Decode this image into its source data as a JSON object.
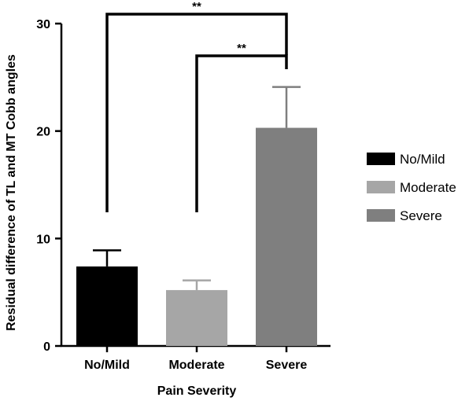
{
  "chart_data": {
    "type": "bar",
    "title": "",
    "xlabel": "Pain Severity",
    "ylabel": "Residual difference of TL and MT Cobb angles",
    "categories": [
      "No/Mild",
      "Moderate",
      "Severe"
    ],
    "values": [
      7.4,
      5.2,
      20.3
    ],
    "error_upper": [
      8.9,
      6.1,
      24.1
    ],
    "colors": [
      "#000000",
      "#a6a6a6",
      "#7f7f7f"
    ],
    "ylim": [
      0,
      30
    ],
    "yticks": [
      "0",
      "10",
      "20",
      "30"
    ],
    "grid": false,
    "legend": {
      "placement": "right",
      "entries": [
        "No/Mild",
        "Moderate",
        "Severe"
      ]
    },
    "significance": [
      {
        "from": "No/Mild",
        "to": "Severe",
        "label": "**"
      },
      {
        "from": "Moderate",
        "to": "Severe",
        "label": "**"
      }
    ]
  }
}
